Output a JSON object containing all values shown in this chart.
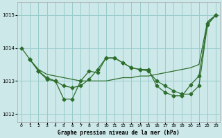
{
  "bg_color": "#cce8e8",
  "grid_color": "#99cccc",
  "line_color": "#2d6e2d",
  "title": "Graphe pression niveau de la mer (hPa)",
  "xlim": [
    -0.5,
    23.5
  ],
  "ylim": [
    1011.75,
    1015.4
  ],
  "yticks": [
    1012,
    1013,
    1014,
    1015
  ],
  "xticks": [
    0,
    1,
    2,
    3,
    4,
    5,
    6,
    7,
    8,
    9,
    10,
    11,
    12,
    13,
    14,
    15,
    16,
    17,
    18,
    19,
    20,
    21,
    22,
    23
  ],
  "line1_x": [
    0,
    1,
    2,
    3,
    4,
    5,
    6,
    7,
    8,
    9,
    10,
    11,
    12,
    13,
    14,
    15,
    16,
    17,
    18,
    19,
    20,
    21,
    22,
    23
  ],
  "line1_y": [
    1014.0,
    1013.65,
    1013.35,
    1013.2,
    1013.15,
    1013.1,
    1013.05,
    1013.0,
    1013.0,
    1013.0,
    1013.0,
    1013.05,
    1013.1,
    1013.1,
    1013.15,
    1013.15,
    1013.2,
    1013.25,
    1013.3,
    1013.35,
    1013.4,
    1013.5,
    1014.8,
    1015.0
  ],
  "line2_x": [
    1,
    2,
    3,
    4,
    5,
    6,
    7,
    8,
    9,
    10,
    11,
    12,
    13,
    14,
    15,
    16,
    17,
    18,
    19,
    20,
    21,
    22,
    23
  ],
  "line2_y": [
    1013.65,
    1013.3,
    1013.1,
    1013.0,
    1012.45,
    1012.45,
    1013.0,
    1013.3,
    1013.25,
    1013.7,
    1013.7,
    1013.55,
    1013.4,
    1013.35,
    1013.3,
    1013.0,
    1012.85,
    1012.7,
    1012.6,
    1012.6,
    1012.85,
    1014.7,
    1015.0
  ],
  "line3_x": [
    1,
    2,
    3,
    4,
    5,
    6,
    7,
    8,
    9,
    10,
    11,
    12,
    13,
    14,
    15,
    16,
    17,
    18,
    19,
    20,
    21,
    22,
    23
  ],
  "line3_y": [
    1013.65,
    1013.3,
    1013.05,
    1013.0,
    1012.85,
    1012.8,
    1012.85,
    1013.05,
    1013.35,
    1013.7,
    1013.7,
    1013.55,
    1013.4,
    1013.35,
    1013.35,
    1012.85,
    1012.65,
    1012.55,
    1012.55,
    1012.88,
    1013.15,
    1014.75,
    1015.0
  ]
}
